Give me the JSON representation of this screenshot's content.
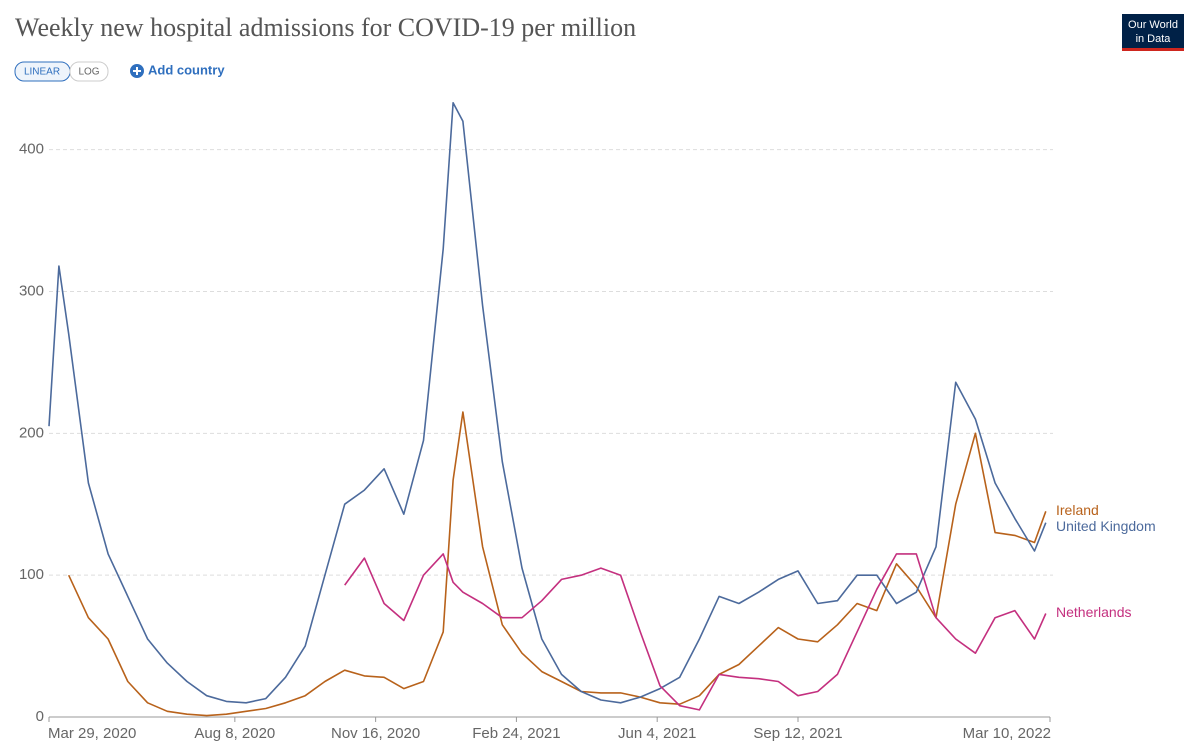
{
  "controls": {
    "linear": "LINEAR",
    "log": "LOG",
    "add_country": "Add country"
  },
  "logo": [
    "Our World",
    "in Data"
  ],
  "chart_data": {
    "type": "line",
    "title": "Weekly new hospital admissions for COVID-19 per million",
    "scale": "linear",
    "grid": true,
    "x": [
      "2020-03-29",
      "2020-04-05",
      "2020-04-12",
      "2020-04-26",
      "2020-05-10",
      "2020-05-24",
      "2020-06-07",
      "2020-06-21",
      "2020-07-05",
      "2020-07-19",
      "2020-08-02",
      "2020-08-16",
      "2020-08-30",
      "2020-09-13",
      "2020-09-27",
      "2020-10-11",
      "2020-10-25",
      "2020-11-08",
      "2020-11-22",
      "2020-12-06",
      "2020-12-20",
      "2021-01-03",
      "2021-01-10",
      "2021-01-17",
      "2021-01-31",
      "2021-02-14",
      "2021-02-28",
      "2021-03-14",
      "2021-03-28",
      "2021-04-11",
      "2021-04-25",
      "2021-05-09",
      "2021-05-23",
      "2021-06-06",
      "2021-06-20",
      "2021-07-04",
      "2021-07-18",
      "2021-08-01",
      "2021-08-15",
      "2021-08-29",
      "2021-09-12",
      "2021-09-26",
      "2021-10-10",
      "2021-10-24",
      "2021-11-07",
      "2021-11-21",
      "2021-12-05",
      "2021-12-19",
      "2022-01-02",
      "2022-01-16",
      "2022-01-30",
      "2022-02-13",
      "2022-02-27",
      "2022-03-07"
    ],
    "xlim": [
      "2020-03-29",
      "2022-03-10"
    ],
    "xticks": [
      {
        "value": "2020-03-29",
        "label": "Mar 29, 2020"
      },
      {
        "value": "2020-08-08",
        "label": "Aug 8, 2020"
      },
      {
        "value": "2020-11-16",
        "label": "Nov 16, 2020"
      },
      {
        "value": "2021-02-24",
        "label": "Feb 24, 2021"
      },
      {
        "value": "2021-06-04",
        "label": "Jun 4, 2021"
      },
      {
        "value": "2021-09-12",
        "label": "Sep 12, 2021"
      },
      {
        "value": "2022-03-10",
        "label": "Mar 10, 2022"
      }
    ],
    "ylim": [
      0,
      435
    ],
    "yticks": [
      0,
      100,
      200,
      300,
      400
    ],
    "series": [
      {
        "name": "Ireland",
        "color": "#b8621b",
        "values": [
          null,
          null,
          100,
          70,
          55,
          25,
          10,
          4,
          2,
          1,
          2,
          4,
          6,
          10,
          15,
          25,
          33,
          29,
          28,
          20,
          25,
          60,
          167,
          215,
          120,
          65,
          45,
          32,
          25,
          18,
          17,
          17,
          14,
          10,
          9,
          15,
          30,
          37,
          50,
          63,
          55,
          53,
          65,
          80,
          75,
          108,
          92,
          70,
          150,
          200,
          130,
          128,
          123,
          145
        ]
      },
      {
        "name": "United Kingdom",
        "color": "#4c6a9c",
        "values": [
          205,
          318,
          270,
          165,
          115,
          85,
          55,
          38,
          25,
          15,
          11,
          10,
          13,
          28,
          50,
          100,
          150,
          160,
          175,
          143,
          195,
          330,
          433,
          420,
          290,
          180,
          105,
          55,
          30,
          18,
          12,
          10,
          14,
          20,
          28,
          55,
          85,
          80,
          88,
          97,
          103,
          80,
          82,
          100,
          100,
          80,
          88,
          120,
          236,
          210,
          165,
          140,
          117,
          137
        ]
      },
      {
        "name": "Netherlands",
        "color": "#c4307f",
        "values": [
          null,
          null,
          null,
          null,
          null,
          null,
          null,
          null,
          null,
          null,
          null,
          null,
          null,
          null,
          null,
          null,
          93,
          112,
          80,
          68,
          100,
          115,
          95,
          88,
          80,
          70,
          70,
          82,
          97,
          100,
          105,
          100,
          60,
          22,
          8,
          5,
          30,
          28,
          27,
          25,
          15,
          18,
          30,
          60,
          90,
          115,
          115,
          70,
          55,
          45,
          70,
          75,
          55,
          73
        ]
      }
    ]
  }
}
